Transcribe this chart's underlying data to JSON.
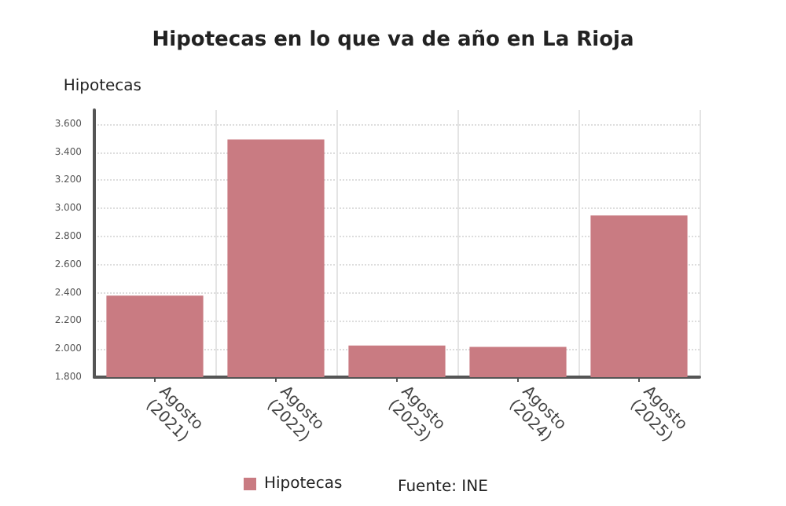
{
  "chart_data": {
    "type": "bar",
    "title": "Hipotecas en lo que va de año en La Rioja",
    "ylabel": "Hipotecas",
    "categories": [
      "Agosto\n(2021)",
      "Agosto\n(2022)",
      "Agosto\n(2023)",
      "Agosto\n(2024)",
      "Agosto\n(2025)"
    ],
    "series": [
      {
        "name": "Hipotecas",
        "color": "#c97b82",
        "values": [
          2380,
          3490,
          2025,
          2015,
          2950
        ]
      }
    ],
    "ylim": [
      1800,
      3700
    ],
    "yticks": [
      {
        "value": 1800,
        "label": "1.800"
      },
      {
        "value": 2000,
        "label": "2.000"
      },
      {
        "value": 2200,
        "label": "2.200"
      },
      {
        "value": 2400,
        "label": "2.400"
      },
      {
        "value": 2600,
        "label": "2.600"
      },
      {
        "value": 2800,
        "label": "2.800"
      },
      {
        "value": 3000,
        "label": "3.000"
      },
      {
        "value": 3200,
        "label": "3.200"
      },
      {
        "value": 3400,
        "label": "3.400"
      },
      {
        "value": 3600,
        "label": "3.600"
      }
    ],
    "grid": true,
    "legend": "bottom",
    "annotations": [
      "Fuente: INE"
    ]
  }
}
